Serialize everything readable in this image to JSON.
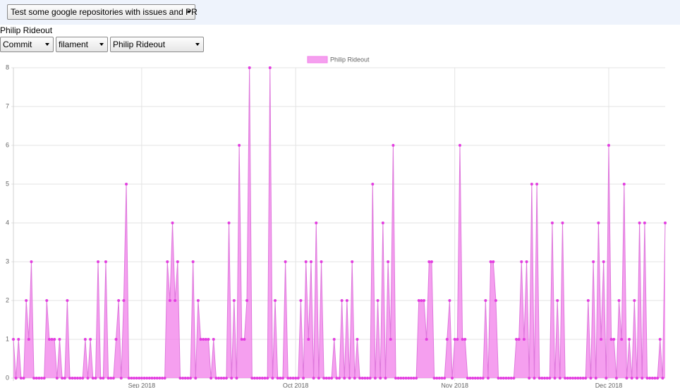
{
  "ui": {
    "repo_select": "Test some google repositories with issues and PR",
    "user_heading": "Philip Rideout",
    "type_select": "Commit",
    "repo_filter": "filament",
    "user_select": "Philip Rideout"
  },
  "chart_data": {
    "type": "area",
    "categories": [
      null,
      null,
      null,
      null,
      null,
      null,
      null,
      null,
      null,
      null,
      null,
      null,
      null,
      null,
      null,
      null,
      null,
      null,
      null,
      null,
      null,
      null,
      null,
      null,
      null,
      null,
      null,
      null,
      null,
      null,
      null,
      null,
      null,
      null,
      null,
      null,
      null,
      null,
      null,
      null,
      null,
      null,
      null,
      null,
      null,
      null,
      null,
      null,
      null,
      null,
      "Sep 2018",
      null,
      null,
      null,
      null,
      null,
      null,
      null,
      null,
      null,
      null,
      null,
      null,
      null,
      null,
      null,
      null,
      null,
      null,
      null,
      null,
      null,
      null,
      null,
      null,
      null,
      null,
      null,
      null,
      null,
      null,
      null,
      null,
      null,
      null,
      null,
      null,
      null,
      null,
      null,
      null,
      null,
      null,
      null,
      null,
      null,
      null,
      null,
      null,
      null,
      null,
      null,
      null,
      null,
      null,
      null,
      null,
      null,
      null,
      null,
      "Oct 2018",
      null,
      null,
      null,
      null,
      null,
      null,
      null,
      null,
      null,
      null,
      null,
      null,
      null,
      null,
      null,
      null,
      null,
      null,
      null,
      null,
      null,
      null,
      null,
      null,
      null,
      null,
      null,
      null,
      null,
      null,
      null,
      null,
      null,
      null,
      null,
      null,
      null,
      null,
      null,
      null,
      null,
      null,
      null,
      null,
      null,
      null,
      null,
      null,
      null,
      null,
      null,
      null,
      null,
      null,
      null,
      null,
      null,
      null,
      null,
      null,
      null,
      "Nov 2018",
      null,
      null,
      null,
      null,
      null,
      null,
      null,
      null,
      null,
      null,
      null,
      null,
      null,
      null,
      null,
      null,
      null,
      null,
      null,
      null,
      null,
      null,
      null,
      null,
      null,
      null,
      null,
      null,
      null,
      null,
      null,
      null,
      null,
      null,
      null,
      null,
      null,
      null,
      null,
      null,
      null,
      null,
      null,
      null,
      null,
      null,
      null,
      null,
      null,
      null,
      null,
      null,
      null,
      null,
      null,
      null,
      null,
      null,
      null,
      "Dec 2018",
      null,
      null,
      null,
      null,
      null,
      null,
      null,
      null,
      null,
      null,
      null,
      null,
      null,
      null,
      null,
      null,
      null,
      null,
      null,
      null,
      null,
      null
    ],
    "series": [
      {
        "name": "Philip Rideout",
        "color": "#f27fe9",
        "values": [
          1,
          0,
          1,
          0,
          0,
          2,
          1,
          3,
          0,
          0,
          0,
          0,
          0,
          2,
          1,
          1,
          1,
          0,
          1,
          0,
          0,
          2,
          0,
          0,
          0,
          0,
          0,
          0,
          1,
          0,
          1,
          0,
          0,
          3,
          0,
          0,
          3,
          0,
          0,
          0,
          1,
          2,
          0,
          2,
          5,
          0,
          0,
          0,
          0,
          0,
          0,
          0,
          0,
          0,
          0,
          0,
          0,
          0,
          0,
          0,
          3,
          2,
          4,
          2,
          3,
          0,
          0,
          0,
          0,
          0,
          3,
          0,
          2,
          1,
          1,
          1,
          1,
          0,
          1,
          0,
          0,
          0,
          0,
          0,
          4,
          0,
          2,
          0,
          6,
          1,
          1,
          2,
          8,
          0,
          0,
          0,
          0,
          0,
          0,
          0,
          8,
          0,
          2,
          0,
          0,
          0,
          3,
          0,
          0,
          0,
          0,
          0,
          2,
          0,
          3,
          1,
          3,
          0,
          4,
          0,
          3,
          0,
          0,
          0,
          0,
          1,
          0,
          0,
          2,
          0,
          2,
          0,
          3,
          0,
          1,
          0,
          0,
          0,
          0,
          0,
          5,
          0,
          2,
          0,
          4,
          0,
          3,
          1,
          6,
          0,
          0,
          0,
          0,
          0,
          0,
          0,
          0,
          0,
          2,
          2,
          2,
          1,
          3,
          3,
          0,
          0,
          0,
          0,
          0,
          1,
          2,
          0,
          1,
          1,
          6,
          1,
          1,
          0,
          0,
          0,
          0,
          0,
          0,
          0,
          2,
          0,
          3,
          3,
          2,
          0,
          0,
          0,
          0,
          0,
          0,
          0,
          1,
          1,
          3,
          1,
          3,
          0,
          5,
          0,
          5,
          0,
          0,
          0,
          0,
          0,
          4,
          0,
          2,
          0,
          4,
          0,
          0,
          0,
          0,
          0,
          0,
          0,
          0,
          0,
          2,
          0,
          3,
          0,
          4,
          1,
          3,
          0,
          6,
          1,
          1,
          0,
          2,
          1,
          5,
          0,
          1,
          0,
          2,
          0,
          4,
          0,
          4,
          0,
          0,
          0,
          0,
          0,
          1,
          0,
          4
        ]
      }
    ],
    "ylim": [
      0,
      8
    ],
    "yticks": [
      0,
      1,
      2,
      3,
      4,
      5,
      6,
      7,
      8
    ],
    "grid": true
  }
}
